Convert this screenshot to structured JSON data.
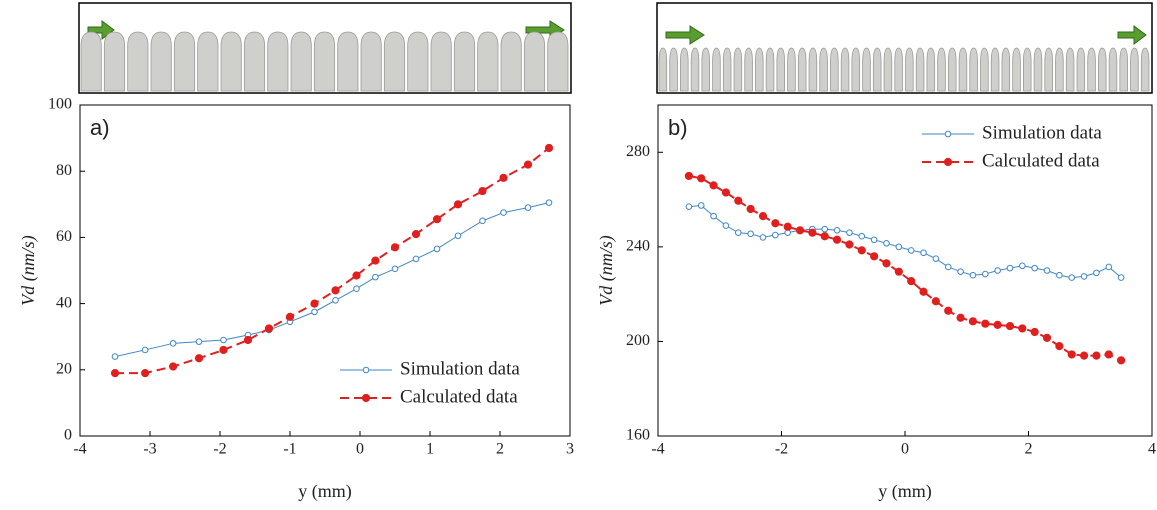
{
  "chart_data": [
    {
      "type": "line",
      "annotation": "a)",
      "xlabel": "y (mm)",
      "ylabel": "Vd (nm/s)",
      "xlim": [
        -4,
        3
      ],
      "xticks": [
        -4,
        -3,
        -2,
        -1,
        0,
        1,
        2,
        3
      ],
      "ylim": [
        0,
        100
      ],
      "yticks": [
        0,
        20,
        40,
        60,
        80,
        100
      ],
      "legend": "lower right",
      "x": [
        -3.5,
        -3.07,
        -2.67,
        -2.3,
        -1.95,
        -1.6,
        -1.3,
        -1.0,
        -0.65,
        -0.35,
        -0.05,
        0.22,
        0.5,
        0.8,
        1.1,
        1.4,
        1.75,
        2.05,
        2.4,
        2.7
      ],
      "series": [
        {
          "name": "Simulation data",
          "color": "#3f86c6",
          "linestyle": "solid",
          "marker": "open",
          "values": [
            24,
            26,
            28,
            28.5,
            29,
            30.5,
            32,
            34.5,
            37.5,
            41,
            44.5,
            48,
            50.5,
            53.5,
            56.5,
            60.5,
            65,
            67.5,
            69,
            70.5
          ]
        },
        {
          "name": "Calculated data",
          "color": "#e0201f",
          "linestyle": "dashed",
          "marker": "filled",
          "values": [
            19,
            19,
            21,
            23.5,
            26,
            29,
            32.5,
            36,
            40,
            44,
            48.5,
            53,
            57,
            61,
            65.5,
            70,
            74,
            78,
            82,
            87
          ]
        }
      ]
    },
    {
      "type": "line",
      "annotation": "b)",
      "xlabel": "y (mm)",
      "ylabel": "Vd (nm/s)",
      "xlim": [
        -4,
        4
      ],
      "xticks": [
        -4,
        -2,
        0,
        2,
        4
      ],
      "ylim": [
        160,
        300
      ],
      "yticks": [
        160,
        200,
        240,
        280
      ],
      "legend": "upper right",
      "x": [
        -3.5,
        -3.3,
        -3.1,
        -2.9,
        -2.7,
        -2.5,
        -2.3,
        -2.1,
        -1.9,
        -1.7,
        -1.5,
        -1.3,
        -1.1,
        -0.9,
        -0.7,
        -0.5,
        -0.3,
        -0.1,
        0.1,
        0.3,
        0.5,
        0.7,
        0.9,
        1.1,
        1.3,
        1.5,
        1.7,
        1.9,
        2.1,
        2.3,
        2.5,
        2.7,
        2.9,
        3.1,
        3.3,
        3.5
      ],
      "series": [
        {
          "name": "Simulation data",
          "color": "#3f86c6",
          "linestyle": "solid",
          "marker": "open",
          "values": [
            257,
            257.5,
            253,
            249,
            246,
            245.5,
            244,
            245,
            246,
            247,
            247.5,
            247.5,
            247,
            246,
            244.5,
            243,
            241.5,
            240,
            238.5,
            237.5,
            235,
            231.5,
            229.5,
            228,
            228.5,
            230,
            231,
            232,
            231,
            230,
            228,
            227,
            227.5,
            229,
            231.5,
            227
          ]
        },
        {
          "name": "Calculated data",
          "color": "#e0201f",
          "linestyle": "dashed",
          "marker": "filled",
          "values": [
            270,
            269,
            266,
            263,
            259.5,
            256,
            253,
            250,
            248.5,
            247,
            246,
            244.5,
            243,
            241,
            238.5,
            236,
            233,
            229.5,
            225.5,
            221,
            217,
            213,
            210,
            208.5,
            207.5,
            207,
            206.5,
            205.5,
            204,
            201.5,
            198,
            194.5,
            194,
            194,
            194.5,
            192
          ]
        }
      ]
    }
  ]
}
